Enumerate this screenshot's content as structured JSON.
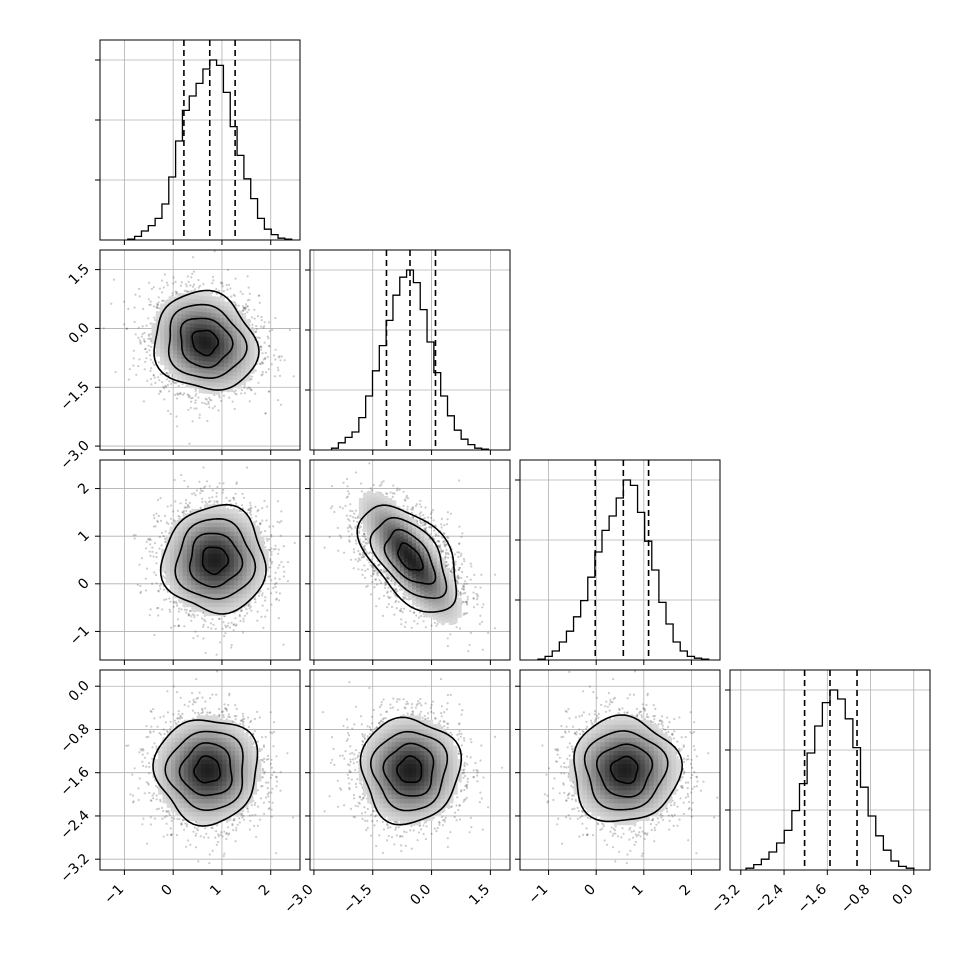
{
  "chart_data": {
    "type": "corner",
    "grid": true,
    "parameters": [
      {
        "range": [
          -1.5,
          2.6
        ],
        "ticks": [
          -1,
          0,
          1,
          2
        ],
        "tick_labels": [
          "−1",
          "0",
          "1",
          "2"
        ],
        "median": 0.75,
        "q16": 0.22,
        "q84": 1.27
      },
      {
        "range": [
          -3.1,
          2.0
        ],
        "ticks": [
          -3.0,
          -1.5,
          0.0,
          1.5
        ],
        "tick_labels": [
          "−3.0",
          "−1.5",
          "0.0",
          "1.5"
        ],
        "median": -0.55,
        "q16": -1.15,
        "q84": 0.1
      },
      {
        "range": [
          -1.6,
          2.6
        ],
        "ticks": [
          -1,
          0,
          1,
          2
        ],
        "tick_labels": [
          "−1",
          "0",
          "1",
          "2"
        ],
        "median": 0.57,
        "q16": -0.02,
        "q84": 1.1
      },
      {
        "range": [
          -3.4,
          0.3
        ],
        "ticks": [
          -3.2,
          -2.4,
          -1.6,
          -0.8,
          0.0
        ],
        "tick_labels": [
          "−3.2",
          "−2.4",
          "−1.6",
          "−0.8",
          "0.0"
        ],
        "median": -1.55,
        "q16": -2.02,
        "q84": -1.05
      }
    ],
    "histograms": [
      [
        0.005,
        0.02,
        0.05,
        0.08,
        0.12,
        0.2,
        0.35,
        0.55,
        0.72,
        0.8,
        0.87,
        0.95,
        1.0,
        0.97,
        0.82,
        0.63,
        0.47,
        0.34,
        0.23,
        0.12,
        0.06,
        0.03,
        0.01,
        0.005
      ],
      [
        0.01,
        0.04,
        0.07,
        0.1,
        0.18,
        0.3,
        0.44,
        0.58,
        0.72,
        0.86,
        0.96,
        1.0,
        0.93,
        0.78,
        0.6,
        0.43,
        0.3,
        0.19,
        0.11,
        0.06,
        0.03,
        0.01,
        0.005
      ],
      [
        0.005,
        0.02,
        0.05,
        0.1,
        0.16,
        0.24,
        0.33,
        0.46,
        0.6,
        0.72,
        0.8,
        0.9,
        1.0,
        0.97,
        0.82,
        0.66,
        0.5,
        0.32,
        0.2,
        0.1,
        0.05,
        0.02,
        0.01,
        0.005
      ],
      [
        0.01,
        0.03,
        0.06,
        0.1,
        0.15,
        0.22,
        0.33,
        0.48,
        0.65,
        0.8,
        0.93,
        1.0,
        0.95,
        0.84,
        0.68,
        0.46,
        0.3,
        0.19,
        0.11,
        0.05,
        0.02,
        0.01
      ]
    ],
    "scatter_panels": [
      {
        "x": 0,
        "y": 1,
        "corr": -0.1,
        "mode": [
          0.65,
          -0.35
        ]
      },
      {
        "x": 0,
        "y": 2,
        "corr": 0.0,
        "mode": [
          0.85,
          0.5
        ]
      },
      {
        "x": 1,
        "y": 2,
        "corr": -0.5,
        "mode": [
          -0.55,
          0.55
        ]
      },
      {
        "x": 0,
        "y": 3,
        "corr": 0.0,
        "mode": [
          0.7,
          -1.55
        ]
      },
      {
        "x": 1,
        "y": 3,
        "corr": 0.0,
        "mode": [
          -0.55,
          -1.55
        ]
      },
      {
        "x": 2,
        "y": 3,
        "corr": 0.0,
        "mode": [
          0.6,
          -1.55
        ]
      }
    ],
    "contour_levels_sigma": [
      0.5,
      1.0,
      1.5,
      2.0
    ]
  }
}
